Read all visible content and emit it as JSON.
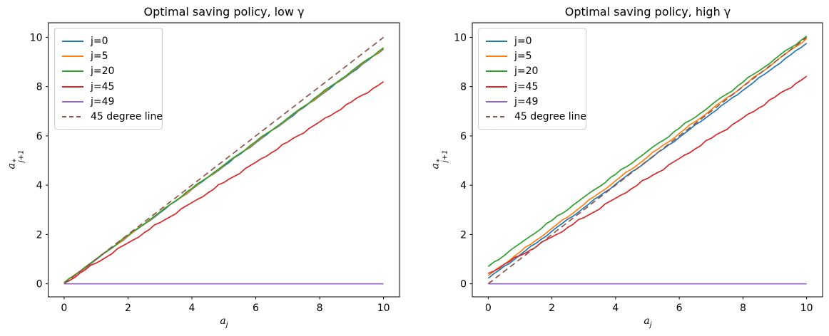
{
  "figure": {
    "background": "#ffffff"
  },
  "chart_data": [
    {
      "type": "line",
      "title": "Optimal saving policy, low γ",
      "xlabel": {
        "base": "a",
        "sub": "j"
      },
      "ylabel": {
        "base": "a",
        "sup": "*",
        "sub": "j+1"
      },
      "x": [
        0,
        1,
        2,
        3,
        4,
        5,
        6,
        7,
        8,
        9,
        10
      ],
      "xticks": [
        0,
        2,
        4,
        6,
        8,
        10
      ],
      "yticks": [
        0,
        2,
        4,
        6,
        8,
        10
      ],
      "xlim": [
        -0.5,
        10.5
      ],
      "ylim": [
        -0.53,
        10.59
      ],
      "grid": false,
      "legend_position": "upper left",
      "series": [
        {
          "name": "j0",
          "label": "j=0",
          "color": "#1f77b4",
          "dash": false,
          "wiggle": 0.02,
          "values": [
            0.03,
            0.98,
            1.93,
            2.88,
            3.83,
            4.77,
            5.72,
            6.67,
            7.62,
            8.57,
            9.52
          ]
        },
        {
          "name": "j5",
          "label": "j=5",
          "color": "#ff7f0e",
          "dash": false,
          "wiggle": 0.02,
          "values": [
            0.04,
            0.99,
            1.94,
            2.9,
            3.85,
            4.8,
            5.75,
            6.7,
            7.65,
            8.6,
            9.55
          ]
        },
        {
          "name": "j20",
          "label": "j=20",
          "color": "#2ca02c",
          "dash": false,
          "wiggle": 0.02,
          "values": [
            0.05,
            1.0,
            1.96,
            2.91,
            3.87,
            4.82,
            5.77,
            6.72,
            7.68,
            8.63,
            9.58
          ]
        },
        {
          "name": "j45",
          "label": "j=45",
          "color": "#d62728",
          "dash": false,
          "wiggle": 0.032,
          "values": [
            0.02,
            0.84,
            1.66,
            2.48,
            3.29,
            4.11,
            4.93,
            5.75,
            6.57,
            7.38,
            8.2
          ]
        },
        {
          "name": "j49",
          "label": "j=49",
          "color": "#9467bd",
          "dash": false,
          "wiggle": 0,
          "values": [
            0,
            0,
            0,
            0,
            0,
            0,
            0,
            0,
            0,
            0,
            0
          ]
        },
        {
          "name": "deg45",
          "label": "45 degree line",
          "color": "#8c564b",
          "dash": true,
          "wiggle": 0,
          "values": [
            0,
            1,
            2,
            3,
            4,
            5,
            6,
            7,
            8,
            9,
            10
          ]
        }
      ]
    },
    {
      "type": "line",
      "title": "Optimal saving policy, high γ",
      "xlabel": {
        "base": "a",
        "sub": "j"
      },
      "ylabel": {
        "base": "a",
        "sup": "*",
        "sub": "j+1"
      },
      "x": [
        0,
        1,
        2,
        3,
        4,
        5,
        6,
        7,
        8,
        9,
        10
      ],
      "xticks": [
        0,
        2,
        4,
        6,
        8,
        10
      ],
      "yticks": [
        0,
        2,
        4,
        6,
        8,
        10
      ],
      "xlim": [
        -0.5,
        10.5
      ],
      "ylim": [
        -0.53,
        10.59
      ],
      "grid": false,
      "legend_position": "upper left",
      "series": [
        {
          "name": "j0",
          "label": "j=0",
          "color": "#1f77b4",
          "dash": false,
          "wiggle": 0.02,
          "values": [
            0.22,
            1.17,
            2.13,
            3.08,
            4.04,
            4.99,
            5.94,
            6.9,
            7.85,
            8.81,
            9.76
          ]
        },
        {
          "name": "j5",
          "label": "j=5",
          "color": "#ff7f0e",
          "dash": false,
          "wiggle": 0.025,
          "values": [
            0.33,
            1.29,
            2.25,
            3.21,
            4.18,
            5.14,
            6.1,
            7.06,
            8.02,
            8.99,
            9.95
          ]
        },
        {
          "name": "j20",
          "label": "j=20",
          "color": "#2ca02c",
          "dash": false,
          "wiggle": 0.03,
          "values": [
            0.7,
            1.64,
            2.57,
            3.51,
            4.44,
            5.38,
            6.31,
            7.25,
            8.18,
            9.12,
            10.05
          ]
        },
        {
          "name": "j45",
          "label": "j=45",
          "color": "#d62728",
          "dash": false,
          "wiggle": 0.035,
          "values": [
            0.42,
            1.14,
            1.9,
            2.68,
            3.47,
            4.27,
            5.08,
            5.9,
            6.73,
            7.57,
            8.42
          ]
        },
        {
          "name": "j49",
          "label": "j=49",
          "color": "#9467bd",
          "dash": false,
          "wiggle": 0,
          "values": [
            0,
            0,
            0,
            0,
            0,
            0,
            0,
            0,
            0,
            0,
            0
          ]
        },
        {
          "name": "deg45",
          "label": "45 degree line",
          "color": "#8c564b",
          "dash": true,
          "wiggle": 0,
          "values": [
            0,
            1,
            2,
            3,
            4,
            5,
            6,
            7,
            8,
            9,
            10
          ]
        }
      ]
    }
  ]
}
